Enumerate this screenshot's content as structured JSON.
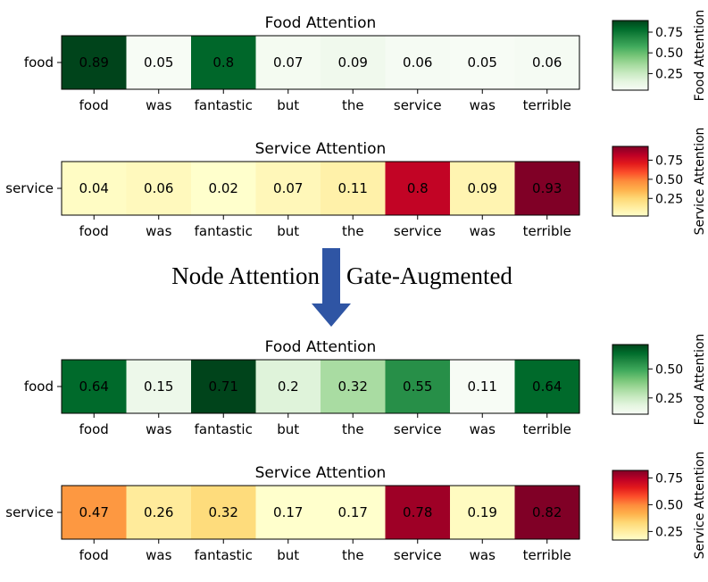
{
  "middle_annotation": {
    "left_text": "Node Attention",
    "right_text": "Gate-Augmented",
    "arrow_color": "#2f55a4"
  },
  "chart_data": [
    {
      "type": "heatmap",
      "title": "Food Attention",
      "row_label": "food",
      "categories": [
        "food",
        "was",
        "fantastic",
        "but",
        "the",
        "service",
        "was",
        "terrible"
      ],
      "values": [
        0.89,
        0.05,
        0.8,
        0.07,
        0.09,
        0.06,
        0.05,
        0.06
      ],
      "value_labels": [
        "0.89",
        "0.05",
        "0.8",
        "0.07",
        "0.09",
        "0.06",
        "0.05",
        "0.06"
      ],
      "colormap": "Greens",
      "vrange": [
        0.05,
        0.89
      ],
      "colorbar": {
        "label": "Food Attention",
        "ticks": [
          0.25,
          0.5,
          0.75
        ],
        "tick_labels": [
          "0.25",
          "0.50",
          "0.75"
        ]
      }
    },
    {
      "type": "heatmap",
      "title": "Service Attention",
      "row_label": "service",
      "categories": [
        "food",
        "was",
        "fantastic",
        "but",
        "the",
        "service",
        "was",
        "terrible"
      ],
      "values": [
        0.04,
        0.06,
        0.02,
        0.07,
        0.11,
        0.8,
        0.09,
        0.93
      ],
      "value_labels": [
        "0.04",
        "0.06",
        "0.02",
        "0.07",
        "0.11",
        "0.8",
        "0.09",
        "0.93"
      ],
      "colormap": "YlOrRd",
      "vrange": [
        0.02,
        0.93
      ],
      "colorbar": {
        "label": "Service Attention",
        "ticks": [
          0.25,
          0.5,
          0.75
        ],
        "tick_labels": [
          "0.25",
          "0.50",
          "0.75"
        ]
      }
    },
    {
      "type": "heatmap",
      "title": "Food Attention",
      "row_label": "food",
      "categories": [
        "food",
        "was",
        "fantastic",
        "but",
        "the",
        "service",
        "was",
        "terrible"
      ],
      "values": [
        0.64,
        0.15,
        0.71,
        0.2,
        0.32,
        0.55,
        0.11,
        0.64
      ],
      "value_labels": [
        "0.64",
        "0.15",
        "0.71",
        "0.2",
        "0.32",
        "0.55",
        "0.11",
        "0.64"
      ],
      "colormap": "Greens",
      "vrange": [
        0.11,
        0.71
      ],
      "colorbar": {
        "label": "Food Attention",
        "ticks": [
          0.25,
          0.5
        ],
        "tick_labels": [
          "0.25",
          "0.50"
        ]
      }
    },
    {
      "type": "heatmap",
      "title": "Service Attention",
      "row_label": "service",
      "categories": [
        "food",
        "was",
        "fantastic",
        "but",
        "the",
        "service",
        "was",
        "terrible"
      ],
      "values": [
        0.47,
        0.26,
        0.32,
        0.17,
        0.17,
        0.78,
        0.19,
        0.82
      ],
      "value_labels": [
        "0.47",
        "0.26",
        "0.32",
        "0.17",
        "0.17",
        "0.78",
        "0.19",
        "0.82"
      ],
      "colormap": "YlOrRd",
      "vrange": [
        0.17,
        0.82
      ],
      "colorbar": {
        "label": "Service Attention",
        "ticks": [
          0.25,
          0.5,
          0.75
        ],
        "tick_labels": [
          "0.25",
          "0.50",
          "0.75"
        ]
      }
    }
  ]
}
